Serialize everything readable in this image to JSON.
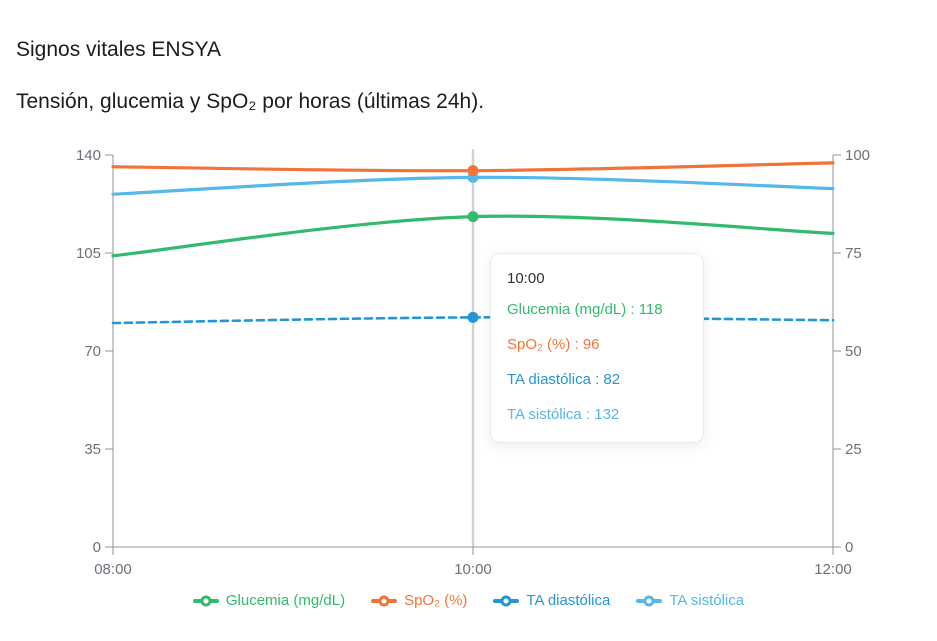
{
  "page": {
    "title": "Signos vitales ENSYA",
    "subtitle": "Tensión, glucemia y SpO₂ por horas (últimas 24h)."
  },
  "colors": {
    "glucemia": "#32ba6e",
    "spo2": "#f2733a",
    "diastolica": "#2396d7",
    "sistolica": "#55b7ea",
    "axis_line": "#909399",
    "axis_label": "#6e7079",
    "hover_line": "#d2d2d2",
    "tooltip_title": "#303030"
  },
  "chart_data": {
    "type": "line",
    "x": [
      "08:00",
      "10:00",
      "12:00"
    ],
    "series": [
      {
        "key": "glucemia",
        "name": "Glucemia (mg/dL)",
        "axis": "left",
        "style": "solid",
        "values": [
          104,
          118,
          112
        ]
      },
      {
        "key": "spo2",
        "name": "SpO₂ (%)",
        "axis": "right",
        "style": "solid",
        "values": [
          97,
          96,
          98
        ]
      },
      {
        "key": "diastolica",
        "name": "TA diastólica",
        "axis": "left",
        "style": "dashed",
        "values": [
          80,
          82,
          81
        ]
      },
      {
        "key": "sistolica",
        "name": "TA sistólica",
        "axis": "left",
        "style": "solid",
        "values": [
          126,
          132,
          128
        ]
      }
    ],
    "left_axis": {
      "min": 0,
      "max": 140,
      "ticks": [
        0,
        35,
        70,
        105,
        140
      ]
    },
    "right_axis": {
      "min": 0,
      "max": 100,
      "ticks": [
        0,
        25,
        50,
        75,
        100
      ]
    },
    "hover_index": 1,
    "grid": false,
    "smooth": true,
    "legend_position": "bottom"
  },
  "tooltip": {
    "title": "10:00",
    "rows": [
      {
        "key": "glucemia",
        "label": "Glucemia (mg/dL)",
        "value": "118"
      },
      {
        "key": "spo2",
        "label": "SpO₂ (%)",
        "value": "96"
      },
      {
        "key": "diastolica",
        "label": "TA diastólica",
        "value": "82"
      },
      {
        "key": "sistolica",
        "label": "TA sistólica",
        "value": "132"
      }
    ]
  }
}
